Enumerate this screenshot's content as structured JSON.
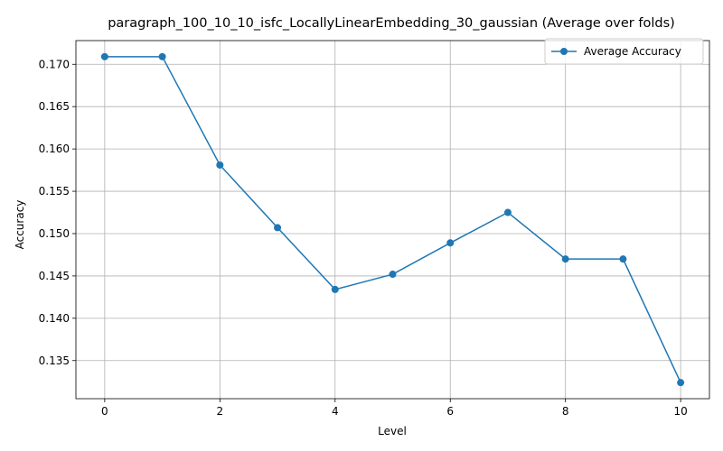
{
  "chart_data": {
    "type": "line",
    "title": "paragraph_100_10_10_isfc_LocallyLinearEmbedding_30_gaussian (Average over folds)",
    "xlabel": "Level",
    "ylabel": "Accuracy",
    "x": [
      0,
      1,
      2,
      3,
      4,
      5,
      6,
      7,
      8,
      9,
      10
    ],
    "series": [
      {
        "name": "Average Accuracy",
        "values": [
          0.1709,
          0.1709,
          0.1581,
          0.1507,
          0.1434,
          0.1452,
          0.1489,
          0.1525,
          0.147,
          0.147,
          0.1324
        ],
        "color": "#1f77b4",
        "marker": "circle"
      }
    ],
    "xlim": [
      -0.5,
      10.5
    ],
    "ylim": [
      0.1305,
      0.1728
    ],
    "xticks": [
      0,
      2,
      4,
      6,
      8,
      10
    ],
    "xtick_labels": [
      "0",
      "2",
      "4",
      "6",
      "8",
      "10"
    ],
    "yticks": [
      0.135,
      0.14,
      0.145,
      0.15,
      0.155,
      0.16,
      0.165,
      0.17
    ],
    "ytick_labels": [
      "0.135",
      "0.140",
      "0.145",
      "0.150",
      "0.155",
      "0.160",
      "0.165",
      "0.170"
    ],
    "grid": true,
    "legend_position": "top-right"
  }
}
